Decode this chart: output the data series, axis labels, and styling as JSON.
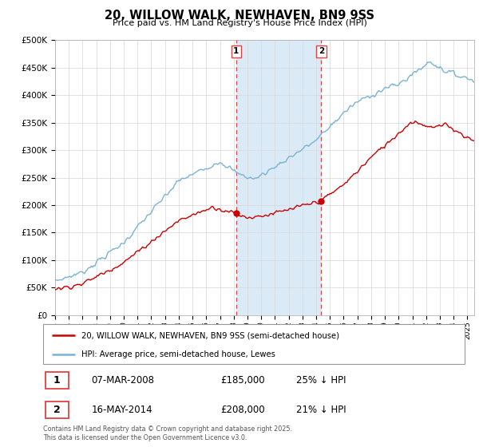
{
  "title": "20, WILLOW WALK, NEWHAVEN, BN9 9SS",
  "subtitle": "Price paid vs. HM Land Registry's House Price Index (HPI)",
  "ylabel_ticks": [
    "£0",
    "£50K",
    "£100K",
    "£150K",
    "£200K",
    "£250K",
    "£300K",
    "£350K",
    "£400K",
    "£450K",
    "£500K"
  ],
  "ytick_values": [
    0,
    50000,
    100000,
    150000,
    200000,
    250000,
    300000,
    350000,
    400000,
    450000,
    500000
  ],
  "hpi_color": "#7ab3d4",
  "price_color": "#cc0000",
  "sale1_date": "07-MAR-2008",
  "sale1_price": 185000,
  "sale1_label": "25% ↓ HPI",
  "sale1_year": 2008.18,
  "sale2_date": "16-MAY-2014",
  "sale2_price": 208000,
  "sale2_label": "21% ↓ HPI",
  "sale2_year": 2014.37,
  "legend_line1": "20, WILLOW WALK, NEWHAVEN, BN9 9SS (semi-detached house)",
  "legend_line2": "HPI: Average price, semi-detached house, Lewes",
  "footnote": "Contains HM Land Registry data © Crown copyright and database right 2025.\nThis data is licensed under the Open Government Licence v3.0.",
  "xmin": 1995,
  "xmax": 2025,
  "highlight_color": "#daeaf7",
  "vline_color": "#dd4444",
  "background_color": "#ffffff"
}
